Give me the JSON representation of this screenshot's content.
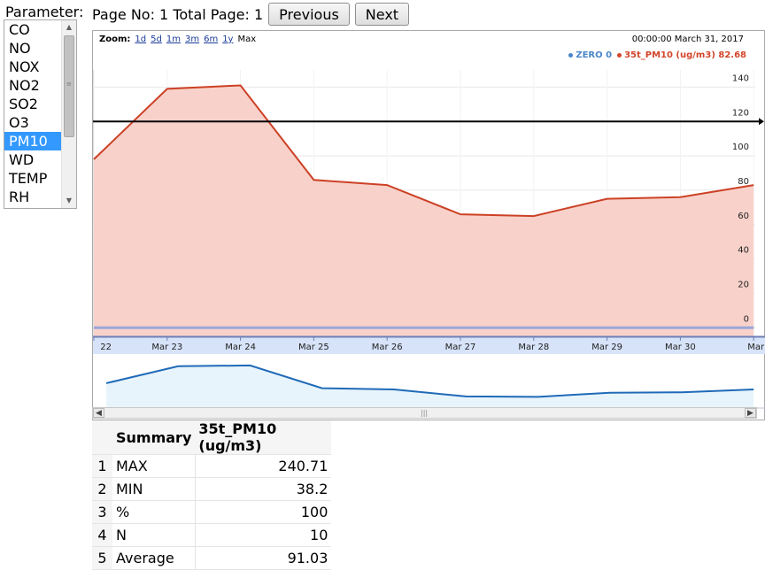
{
  "top": {
    "parameter_label": "Parameter:",
    "page_info": "Page No: 1 Total Page: 1",
    "previous_label": "Previous",
    "next_label": "Next"
  },
  "parameters": {
    "items": [
      "CO",
      "NO",
      "NOX",
      "NO2",
      "SO2",
      "O3",
      "PM10",
      "WD",
      "TEMP",
      "RH"
    ],
    "selected": "PM10"
  },
  "chart": {
    "zoom_label": "Zoom:",
    "zoom_options": [
      "1d",
      "5d",
      "1m",
      "3m",
      "6m",
      "1y",
      "Max"
    ],
    "zoom_active": "Max",
    "timestamp": "00:00:00 March 31, 2017",
    "legend": [
      {
        "label": "ZERO 0",
        "color": "#4a86c8"
      },
      {
        "label": "35t_PM10 (ug/m3) 82.68",
        "color": "#d3452a"
      }
    ],
    "colors": {
      "series_line": "#cc4125",
      "series_fill": "#f8d2ca",
      "reference_line": "#000000",
      "navigator_line": "#1f6ab8",
      "navigator_fill": "#e8f4fb",
      "axis_band": "#d7e3f8"
    },
    "x_ticks": [
      "22",
      "Mar 23",
      "Mar 24",
      "Mar 25",
      "Mar 26",
      "Mar 27",
      "Mar 28",
      "Mar 29",
      "Mar 30",
      "Mar"
    ]
  },
  "chart_data": {
    "type": "area",
    "x": [
      "Mar 22",
      "Mar 23",
      "Mar 24",
      "Mar 25",
      "Mar 26",
      "Mar 27",
      "Mar 28",
      "Mar 29",
      "Mar 30",
      "Mar 31"
    ],
    "series": [
      {
        "name": "35t_PM10 (ug/m3)",
        "values": [
          98,
          139,
          141,
          86,
          83,
          66,
          65,
          75,
          76,
          83
        ]
      },
      {
        "name": "ZERO",
        "values": [
          0,
          0,
          0,
          0,
          0,
          0,
          0,
          0,
          0,
          0
        ]
      }
    ],
    "reference_line": 120,
    "y_ticks": [
      0,
      20,
      40,
      60,
      80,
      100,
      120,
      140
    ],
    "ylim": [
      -5,
      150
    ],
    "grid": true,
    "legend_position": "top-right"
  },
  "summary": {
    "headers": [
      "Summary",
      "35t_PM10 (ug/m3)"
    ],
    "rows": [
      {
        "index": "1",
        "name": "MAX",
        "value": "240.71"
      },
      {
        "index": "2",
        "name": "MIN",
        "value": "38.2"
      },
      {
        "index": "3",
        "name": "%",
        "value": "100"
      },
      {
        "index": "4",
        "name": "N",
        "value": "10"
      },
      {
        "index": "5",
        "name": "Average",
        "value": "91.03"
      }
    ]
  }
}
